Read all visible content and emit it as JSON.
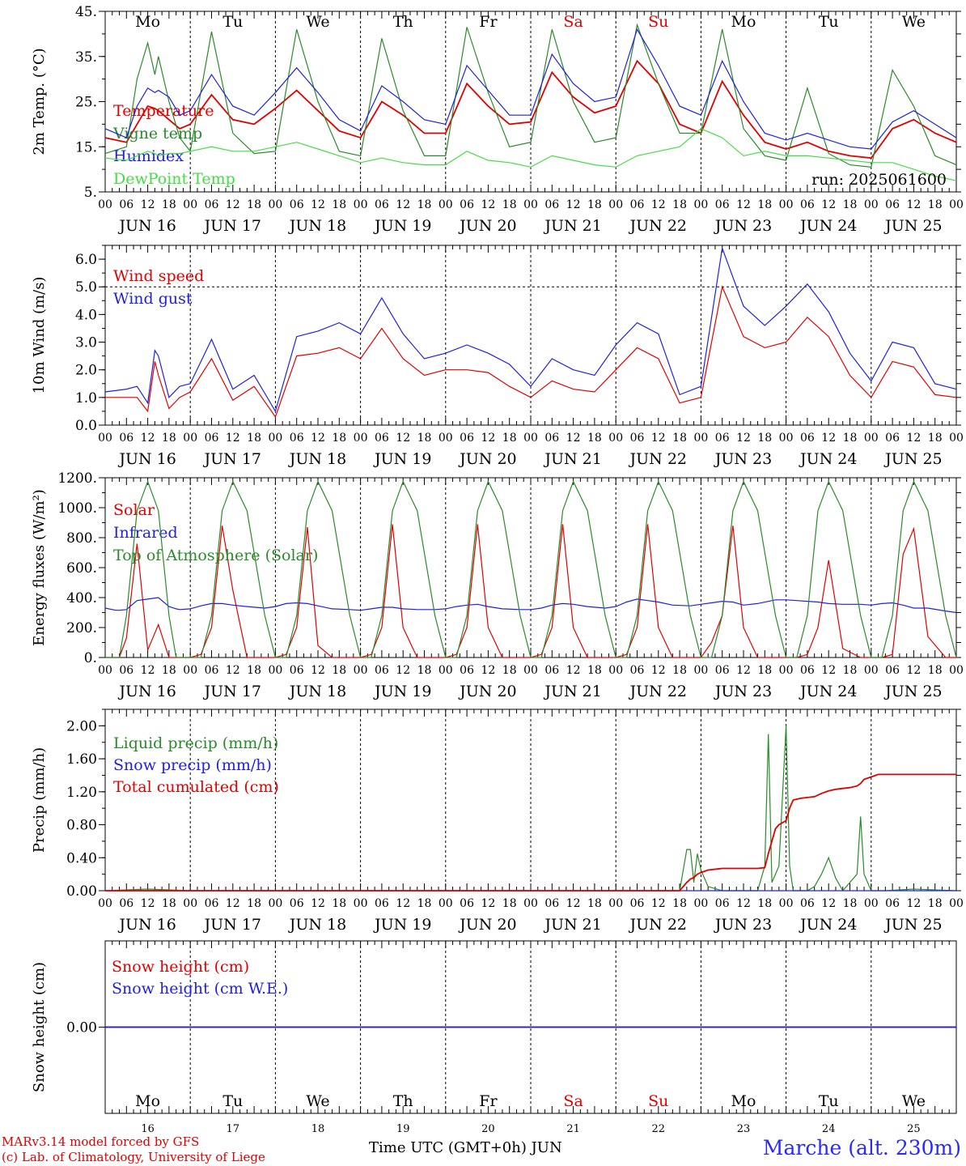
{
  "days": {
    "dates": [
      "JUN 16",
      "JUN 17",
      "JUN 18",
      "JUN 19",
      "JUN 20",
      "JUN 21",
      "JUN 22",
      "JUN 23",
      "JUN 24",
      "JUN 25"
    ],
    "weekdays": [
      "Mo",
      "Tu",
      "We",
      "Th",
      "Fr",
      "Sa",
      "Su",
      "Mo",
      "Tu",
      "We"
    ],
    "day_numbers": [
      "16",
      "17",
      "18",
      "19",
      "20",
      "21",
      "22",
      "23",
      "24",
      "25"
    ],
    "hour_ticks": [
      "00",
      "06",
      "12",
      "18"
    ],
    "end_tick": "00",
    "weekend_color": "#e00000"
  },
  "footer": {
    "model_line": "MARv3.14 model forced by GFS",
    "credit_line": "(c) Lab. of Climatology, University of Liege",
    "x_title": "Time UTC (GMT+0h) JUN",
    "station": "Marche (alt. 230m)"
  },
  "chart_data": [
    {
      "type": "line",
      "ylabel": "2m Temp. (°C)",
      "ylim": [
        5,
        45
      ],
      "yticks": [
        "5.",
        "15.",
        "25.",
        "35.",
        "45."
      ],
      "run_label": "run: 2025061600",
      "x_hours": [
        0,
        6,
        9,
        12,
        14,
        15,
        18,
        21,
        24,
        30,
        36,
        42,
        48,
        54,
        60,
        66,
        72,
        78,
        84,
        90,
        96,
        102,
        108,
        114,
        120,
        126,
        132,
        138,
        144,
        150,
        156,
        162,
        168,
        174,
        180,
        186,
        192,
        198,
        204,
        210,
        216,
        222,
        228,
        234,
        240
      ],
      "series": [
        {
          "name": "Temperature",
          "color": "#e00000",
          "values": [
            17,
            16,
            20,
            24,
            23.5,
            23,
            21,
            19,
            20,
            26.5,
            21,
            20,
            23.5,
            27.5,
            23,
            18.5,
            17,
            25,
            22,
            18,
            18,
            29,
            24,
            20,
            20.5,
            31.5,
            26,
            22.5,
            24,
            34,
            29,
            20,
            18,
            29.5,
            22,
            16,
            14.5,
            16,
            14,
            13,
            12.5,
            19,
            21,
            18,
            16
          ]
        },
        {
          "name": "Vigne temp",
          "color": "#2a8a2a",
          "values": [
            13.5,
            15,
            30,
            38,
            31,
            35,
            25,
            17,
            14,
            40.5,
            18,
            13.5,
            14,
            41,
            25,
            14,
            13,
            39,
            23,
            13,
            13,
            41.5,
            27,
            15,
            16,
            41,
            25,
            16,
            17,
            42,
            29,
            18,
            18,
            41,
            19,
            13,
            12,
            28,
            13.5,
            11,
            10.5,
            32,
            24,
            13,
            11
          ]
        },
        {
          "name": "Humidex",
          "color": "#2020e0",
          "values": [
            19,
            17,
            24,
            28,
            27,
            27.5,
            26,
            22,
            23,
            31,
            24,
            22,
            27,
            32.5,
            27,
            21,
            18.5,
            28.5,
            25,
            21,
            20,
            33,
            27.5,
            22,
            22,
            35.5,
            29,
            25,
            26,
            41,
            33,
            24,
            22,
            34,
            25,
            18,
            16.5,
            18,
            16.5,
            15,
            14.5,
            20.5,
            23,
            20,
            17
          ]
        },
        {
          "name": "DewPoint Temp",
          "color": "#44dd44",
          "values": [
            12.5,
            12,
            13,
            14,
            13.5,
            13,
            13.5,
            13.5,
            14,
            15,
            14,
            14,
            15,
            16,
            14.5,
            13,
            11.5,
            12.5,
            11.5,
            11,
            11,
            14,
            12,
            11.5,
            10.5,
            13,
            12,
            11,
            10.5,
            13,
            14,
            15,
            19,
            17,
            13,
            14,
            13,
            13,
            12.5,
            12,
            11.5,
            11.5,
            10,
            8.5,
            7.5
          ]
        }
      ]
    },
    {
      "type": "line",
      "ylabel": "10m Wind (m/s)",
      "ylim": [
        0,
        6.5
      ],
      "yticks": [
        "0.0",
        "1.0",
        "2.0",
        "3.0",
        "4.0",
        "5.0",
        "6.0"
      ],
      "reference_line": 5.0,
      "x_hours": [
        0,
        6,
        9,
        12,
        14,
        15,
        18,
        21,
        24,
        30,
        36,
        42,
        48,
        54,
        60,
        66,
        72,
        78,
        84,
        90,
        96,
        102,
        108,
        114,
        120,
        126,
        132,
        138,
        144,
        150,
        156,
        162,
        168,
        174,
        180,
        186,
        192,
        198,
        204,
        210,
        216,
        222,
        228,
        234,
        240
      ],
      "series": [
        {
          "name": "Wind speed",
          "color": "#e00000",
          "values": [
            1.0,
            1.0,
            1.0,
            0.5,
            2.3,
            1.8,
            0.6,
            1.0,
            1.2,
            2.4,
            0.9,
            1.4,
            0.3,
            2.5,
            2.6,
            2.8,
            2.4,
            3.5,
            2.4,
            1.8,
            2.0,
            2.0,
            1.9,
            1.4,
            1.0,
            1.6,
            1.3,
            1.2,
            2.0,
            2.8,
            2.4,
            0.8,
            1.0,
            5.0,
            3.2,
            2.8,
            3.0,
            3.9,
            3.2,
            1.8,
            1.0,
            2.3,
            2.1,
            1.1,
            1.0
          ]
        },
        {
          "name": "Wind gust",
          "color": "#2020e0",
          "values": [
            1.2,
            1.3,
            1.4,
            0.8,
            2.7,
            2.5,
            1.0,
            1.4,
            1.5,
            3.1,
            1.3,
            1.8,
            0.5,
            3.2,
            3.4,
            3.7,
            3.3,
            4.6,
            3.3,
            2.4,
            2.6,
            2.9,
            2.6,
            2.2,
            1.4,
            2.4,
            2.0,
            1.8,
            2.9,
            3.7,
            3.3,
            1.1,
            1.4,
            6.4,
            4.3,
            3.6,
            4.3,
            5.1,
            4.1,
            2.6,
            1.6,
            3.0,
            2.8,
            1.5,
            1.3
          ]
        }
      ]
    },
    {
      "type": "line",
      "ylabel": "Energy fluxes (W/m²)",
      "ylim": [
        0,
        1200
      ],
      "yticks": [
        "0.",
        "200.",
        "400.",
        "600.",
        "800.",
        "1000.",
        "1200."
      ],
      "x_hours": [
        0,
        3,
        4,
        6,
        9,
        12,
        15,
        18,
        20,
        21,
        24,
        27,
        30,
        33,
        36,
        40,
        45,
        48,
        51,
        54,
        57,
        60,
        64,
        69,
        72,
        75,
        78,
        81,
        84,
        88,
        93,
        96,
        99,
        102,
        105,
        108,
        112,
        117,
        120,
        123,
        126,
        129,
        132,
        136,
        141,
        144,
        147,
        150,
        153,
        156,
        160,
        165,
        168,
        171,
        174,
        177,
        180,
        184,
        189,
        192,
        195,
        198,
        201,
        204,
        208,
        213,
        216,
        219,
        222,
        225,
        228,
        232,
        237,
        240
      ],
      "series": [
        {
          "name": "Solar",
          "color": "#e00000",
          "values": [
            0,
            0,
            0,
            130,
            760,
            50,
            220,
            0,
            0,
            0,
            0,
            20,
            200,
            880,
            450,
            0,
            0,
            0,
            20,
            200,
            870,
            80,
            0,
            0,
            0,
            20,
            200,
            890,
            200,
            0,
            0,
            0,
            20,
            200,
            890,
            200,
            0,
            0,
            0,
            20,
            200,
            890,
            200,
            0,
            0,
            0,
            20,
            200,
            890,
            200,
            0,
            0,
            0,
            100,
            280,
            880,
            200,
            0,
            0,
            0,
            0,
            20,
            200,
            650,
            60,
            0,
            0,
            0,
            20,
            690,
            860,
            140,
            0,
            0
          ]
        },
        {
          "name": "Infrared",
          "color": "#2020e0",
          "values": [
            330,
            315,
            315,
            320,
            380,
            390,
            400,
            340,
            325,
            320,
            325,
            345,
            360,
            360,
            350,
            340,
            330,
            340,
            360,
            365,
            360,
            345,
            325,
            320,
            315,
            325,
            335,
            335,
            325,
            320,
            320,
            325,
            340,
            350,
            355,
            340,
            325,
            320,
            320,
            330,
            350,
            360,
            355,
            340,
            330,
            340,
            370,
            390,
            380,
            370,
            350,
            345,
            355,
            365,
            375,
            370,
            350,
            360,
            385,
            385,
            380,
            375,
            370,
            360,
            355,
            355,
            350,
            360,
            365,
            350,
            330,
            330,
            310,
            300
          ]
        },
        {
          "name": "Top of Atmosphere (Solar)",
          "color": "#2a8a2a",
          "values": [
            0,
            0,
            0,
            280,
            980,
            1175,
            980,
            280,
            0,
            0,
            0,
            0,
            280,
            980,
            1175,
            980,
            280,
            0,
            0,
            280,
            980,
            1175,
            980,
            280,
            0,
            0,
            280,
            980,
            1175,
            980,
            280,
            0,
            0,
            280,
            980,
            1175,
            980,
            280,
            0,
            0,
            280,
            980,
            1175,
            980,
            280,
            0,
            0,
            280,
            980,
            1175,
            980,
            280,
            0,
            0,
            280,
            980,
            1175,
            980,
            280,
            0,
            0,
            280,
            980,
            1175,
            980,
            280,
            0,
            0,
            280,
            980,
            1175,
            980,
            280,
            0
          ]
        }
      ]
    },
    {
      "type": "line",
      "ylabel": "Precip (mm/h)",
      "ylim": [
        0,
        2.2
      ],
      "yticks": [
        "0.00",
        "0.40",
        "0.80",
        "1.20",
        "1.60",
        "2.00"
      ],
      "x_hours": [
        0,
        12,
        24,
        48,
        72,
        96,
        120,
        144,
        162,
        164,
        165,
        166,
        167,
        168,
        170,
        174,
        180,
        184,
        186,
        187,
        188,
        189,
        190,
        192,
        193,
        194,
        196,
        198,
        200,
        202,
        204,
        206,
        208,
        210,
        212,
        213,
        214,
        216,
        218,
        220,
        228,
        240
      ],
      "series": [
        {
          "name": "Liquid precip (mm/h)",
          "color": "#2a8a2a",
          "values": [
            0,
            0.02,
            0,
            0,
            0,
            0,
            0,
            0,
            0,
            0.5,
            0.5,
            0.1,
            0.45,
            0.25,
            0.05,
            0,
            0,
            0,
            0.3,
            1.9,
            0.1,
            0.2,
            0.3,
            2.0,
            0.3,
            0,
            0,
            0,
            0.05,
            0.2,
            0.4,
            0.15,
            0,
            0.1,
            0.2,
            0.9,
            0.2,
            0,
            0,
            0,
            0.02,
            0
          ]
        },
        {
          "name": "Snow precip (mm/h)",
          "color": "#2020e0",
          "values": [
            0,
            0,
            0,
            0,
            0,
            0,
            0,
            0,
            0,
            0,
            0,
            0,
            0,
            0,
            0,
            0,
            0,
            0,
            0,
            0,
            0,
            0,
            0,
            0,
            0,
            0,
            0,
            0,
            0,
            0,
            0,
            0,
            0,
            0,
            0,
            0,
            0,
            0,
            0,
            0,
            0,
            0
          ]
        },
        {
          "name": "Total cumulated (cm)",
          "color": "#e00000",
          "values": [
            0,
            0,
            0,
            0,
            0,
            0,
            0,
            0,
            0,
            0.1,
            0.14,
            0.16,
            0.2,
            0.22,
            0.25,
            0.27,
            0.27,
            0.27,
            0.28,
            0.45,
            0.6,
            0.75,
            0.8,
            0.85,
            1.0,
            1.1,
            1.12,
            1.13,
            1.14,
            1.18,
            1.21,
            1.23,
            1.24,
            1.25,
            1.27,
            1.3,
            1.35,
            1.38,
            1.41,
            1.41,
            1.41,
            1.41
          ]
        }
      ]
    },
    {
      "type": "line",
      "ylabel": "Snow height (cm)",
      "ylim": [
        -1,
        1
      ],
      "yticks": [
        "0.00"
      ],
      "x_hours": [
        0,
        240
      ],
      "series": [
        {
          "name": "Snow height (cm)",
          "color": "#e00000",
          "values": [
            0,
            0
          ]
        },
        {
          "name": "Snow height (cm W.E.)",
          "color": "#2020e0",
          "values": [
            0,
            0
          ]
        }
      ]
    }
  ]
}
